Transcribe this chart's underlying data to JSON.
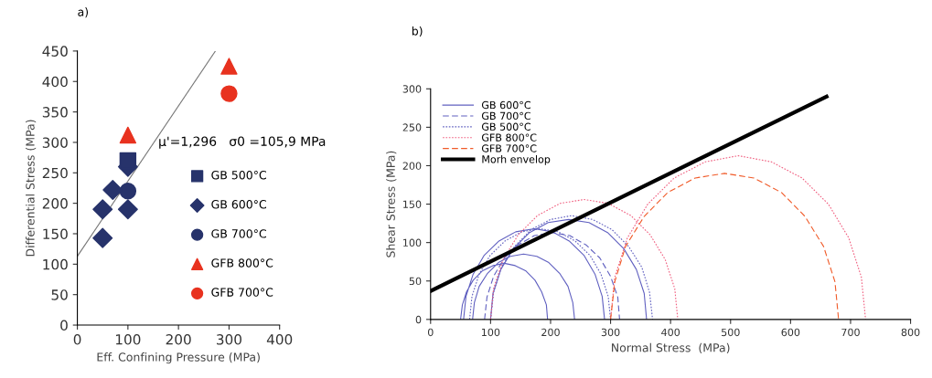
{
  "chart_data": [
    {
      "type": "scatter",
      "title": "a)",
      "xlabel": "Eff. Confining Pressure (MPa)",
      "ylabel": "Differential Stress (MPa)",
      "xlim": [
        0,
        400
      ],
      "xticks": [
        0,
        100,
        200,
        300,
        400
      ],
      "ylim": [
        0,
        450
      ],
      "yticks": [
        0,
        50,
        100,
        150,
        200,
        250,
        300,
        350,
        400,
        450
      ],
      "grid": false,
      "legend": "right",
      "annotations": [
        {
          "text": "μ'=1,296   σ0 =105,9 MPa",
          "x": 160,
          "y": 300
        }
      ],
      "series": [
        {
          "name": "GB 500°C",
          "color": "#27336b",
          "marker": "square",
          "x": [
            100
          ],
          "values": [
            270
          ]
        },
        {
          "name": "GB 600°C",
          "color": "#27336b",
          "marker": "diamond",
          "x": [
            100,
            70,
            50,
            50,
            100
          ],
          "values": [
            260,
            222,
            190,
            143,
            190
          ]
        },
        {
          "name": "GB 700°C",
          "color": "#27336b",
          "marker": "circle",
          "x": [
            100
          ],
          "values": [
            220
          ]
        },
        {
          "name": "GFB 800°C",
          "color": "#e8321f",
          "marker": "triangle",
          "x": [
            100,
            300
          ],
          "values": [
            312,
            425
          ]
        },
        {
          "name": "GFB 700°C",
          "color": "#e8321f",
          "marker": "circle",
          "x": [
            300
          ],
          "values": [
            380
          ]
        },
        {
          "type": "line",
          "color": "#777777",
          "marker": "none",
          "line_style": "solid",
          "x": [
            0,
            273
          ],
          "values": [
            113,
            450
          ]
        }
      ]
    },
    {
      "type": "line",
      "title": "b)",
      "xlabel": "Normal Stress  (MPa)",
      "ylabel": "Shear Stress (MPa)",
      "xlim": [
        0,
        800
      ],
      "xticks": [
        0,
        100,
        200,
        300,
        400,
        500,
        600,
        700,
        800
      ],
      "ylim": [
        0,
        300
      ],
      "yticks": [
        0,
        50,
        100,
        150,
        200,
        250,
        300
      ],
      "grid": false,
      "legend": "top left",
      "marker": "none",
      "series": [
        {
          "name": "GB 600°C",
          "color": "#6060c0",
          "line_style": "solid",
          "x": [
            50,
            53,
            60,
            71,
            86,
            104,
            123,
            141,
            159,
            174,
            185,
            193,
            195,
            null,
            70,
            73,
            81,
            95,
            113,
            133,
            155,
            177,
            197,
            215,
            229,
            237,
            240,
            null,
            55,
            59,
            71,
            89,
            114,
            142,
            173,
            203,
            231,
            256,
            274,
            286,
            290,
            null,
            100,
            104,
            117,
            138,
            165,
            196,
            230,
            264,
            295,
            322,
            343,
            356,
            360
          ],
          "values": [
            0,
            19,
            36,
            51,
            63,
            70,
            73,
            70,
            63,
            51,
            36,
            19,
            0,
            null,
            0,
            22,
            43,
            60,
            74,
            82,
            85,
            82,
            74,
            60,
            43,
            22,
            0,
            null,
            0,
            30,
            59,
            83,
            102,
            114,
            118,
            114,
            102,
            83,
            59,
            30,
            0,
            null,
            0,
            34,
            65,
            92,
            113,
            126,
            130,
            126,
            113,
            92,
            65,
            34,
            0
          ]
        },
        {
          "name": "GB 700°C",
          "color": "#6060c0",
          "line_style": "dashed",
          "x": [
            90,
            94,
            105,
            123,
            146,
            173,
            203,
            232,
            259,
            282,
            300,
            312,
            315
          ],
          "values": [
            0,
            29,
            56,
            80,
            97,
            109,
            113,
            109,
            97,
            80,
            56,
            29,
            0
          ]
        },
        {
          "name": "GB 500°C",
          "color": "#6060c0",
          "line_style": "dotted",
          "x": [
            100,
            105,
            118,
            140,
            168,
            200,
            235,
            270,
            302,
            330,
            352,
            365,
            370,
            null,
            65,
            69,
            81,
            99,
            124,
            152,
            183,
            213,
            241,
            266,
            284,
            296,
            300
          ],
          "values": [
            0,
            35,
            68,
            95,
            117,
            130,
            135,
            130,
            117,
            95,
            68,
            35,
            0,
            null,
            0,
            30,
            59,
            83,
            102,
            114,
            118,
            114,
            102,
            83,
            59,
            30,
            0
          ]
        },
        {
          "name": "GFB 800°C",
          "color": "#f06080",
          "line_style": "dotted",
          "x": [
            100,
            105,
            121,
            146,
            178,
            216,
            256,
            296,
            334,
            366,
            391,
            407,
            412,
            null,
            300,
            307,
            328,
            362,
            406,
            458,
            513,
            568,
            619,
            663,
            697,
            718,
            725
          ],
          "values": [
            0,
            40,
            78,
            110,
            135,
            151,
            156,
            151,
            135,
            110,
            78,
            40,
            0,
            null,
            0,
            55,
            106,
            150,
            184,
            205,
            213,
            205,
            184,
            150,
            106,
            55,
            0
          ]
        },
        {
          "name": "GFB 700°C",
          "color": "#f05a28",
          "line_style": "dashed",
          "x": [
            300,
            307,
            325,
            356,
            395,
            441,
            490,
            539,
            585,
            624,
            655,
            674,
            680
          ],
          "values": [
            0,
            49,
            95,
            134,
            165,
            184,
            190,
            184,
            165,
            134,
            95,
            49,
            0
          ]
        },
        {
          "name": "Morh envelop",
          "color": "#000000",
          "line_style": "solid",
          "x": [
            0,
            660
          ],
          "values": [
            37,
            290
          ]
        }
      ]
    }
  ]
}
